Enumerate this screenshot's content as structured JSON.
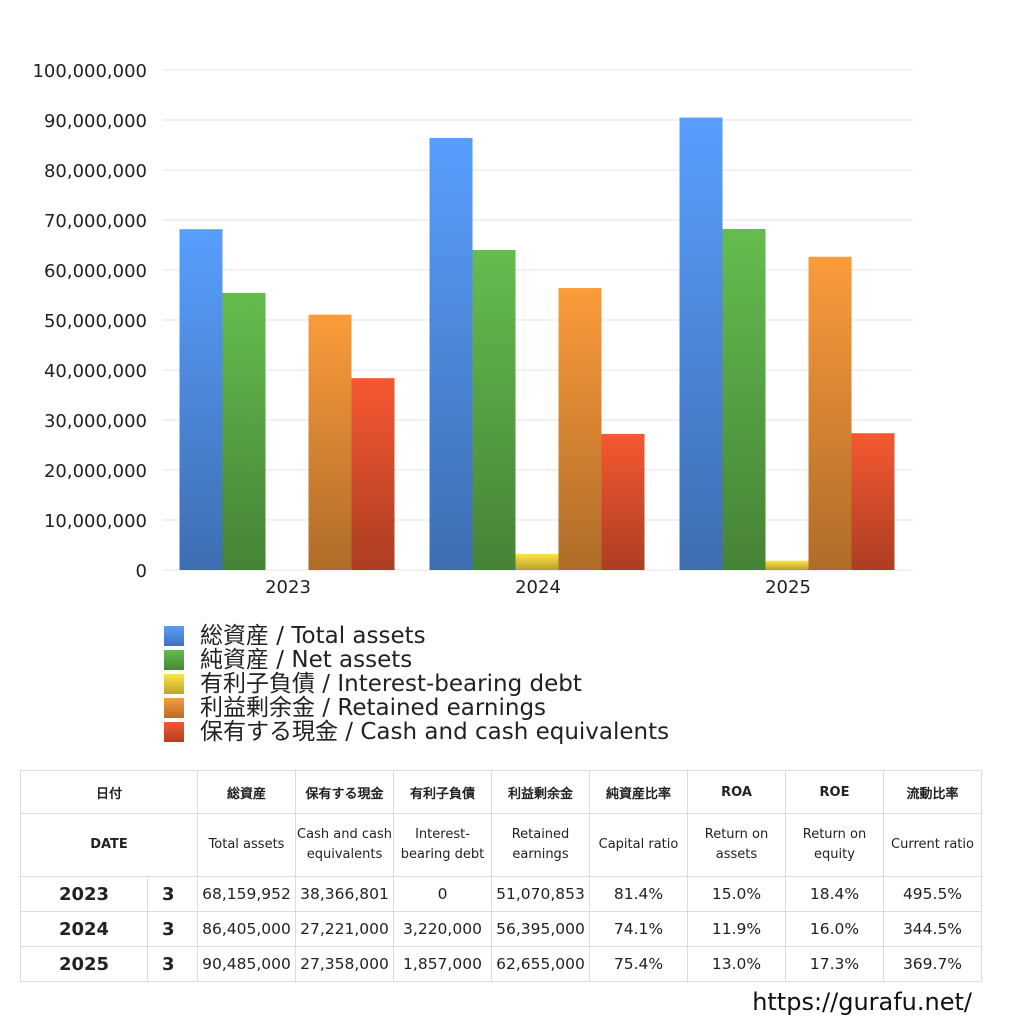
{
  "chart_data": {
    "type": "bar",
    "categories": [
      "2023",
      "2024",
      "2025"
    ],
    "series": [
      {
        "name": "総資産 / Total assets",
        "values": [
          68159952,
          86405000,
          90485000
        ],
        "color": "#4f8de3"
      },
      {
        "name": "純資産 / Net assets",
        "values": [
          55420000,
          64000000,
          68200000
        ],
        "color": "#5aa846"
      },
      {
        "name": "有利子負債 / Interest-bearing debt",
        "values": [
          0,
          3220000,
          1857000
        ],
        "color": "#e8cc3a"
      },
      {
        "name": "利益剰余金 / Retained earnings",
        "values": [
          51070853,
          56395000,
          62655000
        ],
        "color": "#e08a35"
      },
      {
        "name": "保有する現金 /  Cash and cash equivalents",
        "values": [
          38366801,
          27221000,
          27358000
        ],
        "color": "#dc4f2c"
      }
    ],
    "ylim": [
      0,
      100000000
    ],
    "y_ticks": [
      "0",
      "10,000,000",
      "20,000,000",
      "30,000,000",
      "40,000,000",
      "50,000,000",
      "60,000,000",
      "70,000,000",
      "80,000,000",
      "90,000,000",
      "100,000,000"
    ],
    "y_tick_values": [
      0,
      10000000,
      20000000,
      30000000,
      40000000,
      50000000,
      60000000,
      70000000,
      80000000,
      90000000,
      100000000
    ],
    "grid": true,
    "legend_position": "bottom-left"
  },
  "table": {
    "headers_jp": [
      "日付",
      "総資産",
      "保有する現金",
      "有利子負債",
      "利益剰余金",
      "純資産比率",
      "ROA",
      "ROE",
      "流動比率"
    ],
    "headers_en": [
      "DATE",
      "Total assets",
      "Cash and cash equivalents",
      "Interest-bearing debt",
      "Retained earnings",
      "Capital ratio",
      "Return on assets",
      "Return on equity",
      "Current ratio"
    ],
    "rows": [
      {
        "year": "2023",
        "month": "3",
        "total_assets": "68,159,952",
        "cash": "38,366,801",
        "debt": "0",
        "retained": "51,070,853",
        "capital_ratio": "81.4%",
        "roa": "15.0%",
        "roe": "18.4%",
        "current_ratio": "495.5%"
      },
      {
        "year": "2024",
        "month": "3",
        "total_assets": "86,405,000",
        "cash": "27,221,000",
        "debt": "3,220,000",
        "retained": "56,395,000",
        "capital_ratio": "74.1%",
        "roa": "11.9%",
        "roe": "16.0%",
        "current_ratio": "344.5%"
      },
      {
        "year": "2025",
        "month": "3",
        "total_assets": "90,485,000",
        "cash": "27,358,000",
        "debt": "1,857,000",
        "retained": "62,655,000",
        "capital_ratio": "75.4%",
        "roa": "13.0%",
        "roe": "17.3%",
        "current_ratio": "369.7%"
      }
    ]
  },
  "footer": {
    "url": "https://gurafu.net/"
  }
}
